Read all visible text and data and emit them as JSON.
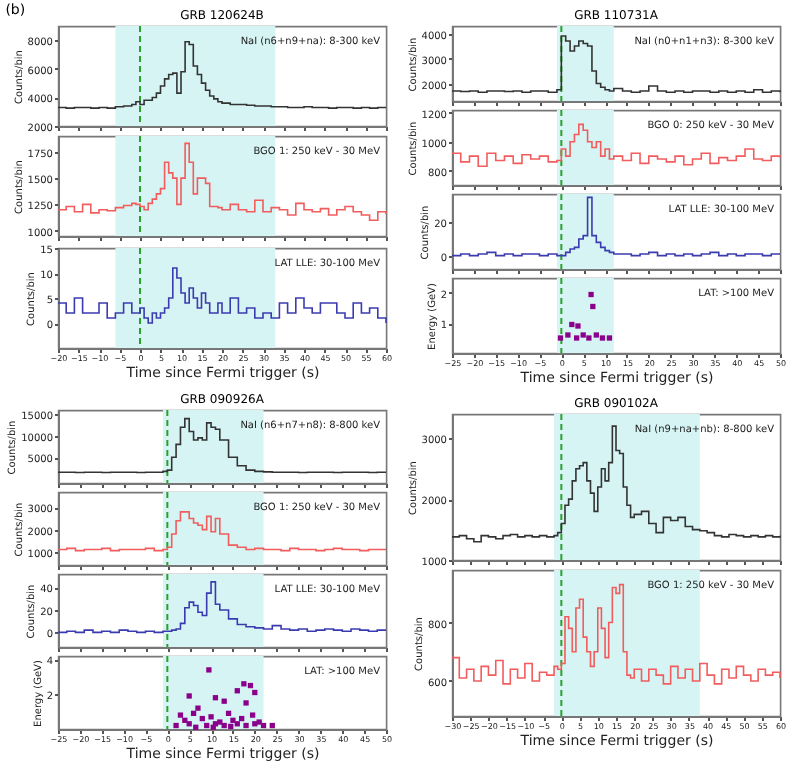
{
  "chart_data": [
    {
      "type": "step",
      "title": "GRB 120624B",
      "ylabel": "Counts/bin",
      "annotations": [
        "(b)",
        "NaI (n6+n9+na): 8-300 keV"
      ],
      "tick_labels": "y",
      "x": [
        -20,
        -18,
        -16,
        -14,
        -12,
        -10,
        -8,
        -6,
        -4,
        -2,
        -1,
        0,
        1,
        2,
        3,
        4,
        5,
        6,
        7,
        8,
        9,
        10,
        11,
        12,
        13,
        14,
        15,
        16,
        17,
        18,
        19,
        20,
        22,
        24,
        26,
        28,
        30,
        32,
        34,
        36,
        38,
        40,
        42,
        44,
        46,
        48,
        50,
        52,
        54,
        56,
        58,
        60
      ],
      "series": [
        {
          "color": "#333333",
          "values": [
            3300,
            3250,
            3300,
            3300,
            3250,
            3300,
            3250,
            3350,
            3400,
            3500,
            3700,
            3500,
            3800,
            3800,
            4000,
            4300,
            4800,
            5300,
            5600,
            5700,
            4300,
            5800,
            7900,
            7700,
            6200,
            5600,
            5000,
            4500,
            4100,
            3900,
            3700,
            3600,
            3500,
            3500,
            3450,
            3400,
            3400,
            3350,
            3350,
            3300,
            3300,
            3350,
            3300,
            3300,
            3250,
            3300,
            3300,
            3250,
            3300,
            3250,
            3300,
            3300
          ]
        }
      ],
      "xlim": [
        -20,
        60
      ],
      "xticks": [
        -20,
        -15,
        -10,
        -5,
        0,
        5,
        10,
        15,
        20,
        25,
        30,
        35,
        40,
        45,
        50,
        55,
        60
      ],
      "ylim": [
        2000,
        9000
      ],
      "yticks": [
        2000,
        4000,
        6000,
        8000
      ],
      "bands": [
        {
          "axis": "x",
          "from": -6,
          "to": 33,
          "color": "#d6f4f4"
        }
      ],
      "ref_lines": [
        {
          "axis": "x",
          "value": 0,
          "color": "#2ca02c",
          "line_style": "dashed"
        }
      ]
    },
    {
      "type": "step",
      "ylabel": "Counts/bin",
      "annotations": [
        "BGO 1: 250 keV - 30 MeV"
      ],
      "tick_labels": "y",
      "x": [
        -20,
        -18,
        -16,
        -14,
        -12,
        -10,
        -8,
        -6,
        -4,
        -2,
        -1,
        0,
        1,
        2,
        3,
        4,
        5,
        6,
        7,
        8,
        9,
        10,
        11,
        12,
        13,
        14,
        15,
        16,
        17,
        18,
        19,
        20,
        22,
        24,
        26,
        28,
        30,
        32,
        34,
        36,
        38,
        40,
        42,
        44,
        46,
        48,
        50,
        52,
        54,
        56,
        58,
        60
      ],
      "series": [
        {
          "color": "#f25c5c",
          "values": [
            1200,
            1230,
            1180,
            1250,
            1170,
            1200,
            1190,
            1220,
            1240,
            1260,
            1250,
            1230,
            1200,
            1260,
            1300,
            1350,
            1400,
            1650,
            1550,
            1500,
            1250,
            1500,
            1830,
            1650,
            1350,
            1500,
            1500,
            1450,
            1230,
            1230,
            1220,
            1200,
            1250,
            1200,
            1180,
            1290,
            1180,
            1220,
            1200,
            1150,
            1260,
            1200,
            1180,
            1210,
            1150,
            1200,
            1230,
            1180,
            1150,
            1100,
            1180,
            1160
          ]
        }
      ],
      "xlim": [
        -20,
        60
      ],
      "xticks": [
        -20,
        -15,
        -10,
        -5,
        0,
        5,
        10,
        15,
        20,
        25,
        30,
        35,
        40,
        45,
        50,
        55,
        60
      ],
      "ylim": [
        950,
        1900
      ],
      "yticks": [
        1000,
        1250,
        1500,
        1750
      ],
      "bands": [
        {
          "axis": "x",
          "from": -6,
          "to": 33,
          "color": "#d6f4f4"
        }
      ],
      "ref_lines": [
        {
          "axis": "x",
          "value": 0,
          "color": "#2ca02c",
          "line_style": "dashed"
        }
      ]
    },
    {
      "type": "step",
      "ylabel": "Counts/bin",
      "xlabel": "Time since Fermi trigger (s)",
      "annotations": [
        "LAT LLE: 30-100 MeV"
      ],
      "x": [
        -20,
        -18,
        -16,
        -14,
        -12,
        -10,
        -8,
        -6,
        -4,
        -2,
        -1,
        0,
        1,
        2,
        3,
        4,
        5,
        6,
        7,
        8,
        9,
        10,
        11,
        12,
        13,
        14,
        15,
        16,
        17,
        18,
        19,
        20,
        22,
        24,
        26,
        28,
        30,
        32,
        34,
        36,
        38,
        40,
        42,
        44,
        46,
        48,
        50,
        52,
        54,
        56,
        58,
        60
      ],
      "series": [
        {
          "color": "#3b3bb0",
          "values": [
            4,
            2,
            5,
            2,
            2,
            4,
            1,
            2,
            4,
            2,
            2,
            3,
            1,
            0,
            2,
            1,
            2,
            3,
            5,
            11,
            9,
            6,
            4,
            7,
            5,
            3,
            6,
            4,
            2,
            2,
            4,
            2,
            5,
            2,
            3,
            1,
            2,
            1,
            4,
            2,
            5,
            3,
            2,
            4,
            4,
            2,
            1,
            4,
            2,
            3,
            1,
            0
          ]
        }
      ],
      "xlim": [
        -20,
        60
      ],
      "xticks": [
        -20,
        -15,
        -10,
        -5,
        0,
        5,
        10,
        15,
        20,
        25,
        30,
        35,
        40,
        45,
        50,
        55,
        60
      ],
      "ylim": [
        -5,
        15
      ],
      "yticks": [
        0,
        5,
        10,
        15
      ],
      "bands": [
        {
          "axis": "x",
          "from": -6,
          "to": 33,
          "color": "#d6f4f4"
        }
      ],
      "ref_lines": [
        {
          "axis": "x",
          "value": 0,
          "color": "#2ca02c",
          "line_style": "dashed"
        }
      ]
    },
    {
      "type": "step",
      "title": "GRB 110731A",
      "ylabel": "Counts/bin",
      "annotations": [
        "NaI (n0+n1+n3): 8-300 keV"
      ],
      "tick_labels": "y",
      "x": [
        -25,
        -23,
        -21,
        -19,
        -17,
        -15,
        -13,
        -11,
        -9,
        -7,
        -5,
        -3,
        -1,
        0,
        1,
        2,
        3,
        4,
        5,
        6,
        7,
        8,
        9,
        10,
        11,
        12,
        14,
        16,
        18,
        20,
        22,
        24,
        26,
        28,
        30,
        32,
        34,
        36,
        38,
        40,
        42,
        44,
        46,
        48,
        50
      ],
      "series": [
        {
          "color": "#333333",
          "values": [
            1700,
            1680,
            1700,
            1650,
            1700,
            1700,
            1680,
            1700,
            1650,
            1700,
            1700,
            1650,
            1750,
            3900,
            3700,
            3300,
            3500,
            3700,
            3600,
            3500,
            2500,
            2000,
            1850,
            1750,
            1700,
            1800,
            1700,
            1650,
            1700,
            1900,
            1700,
            1650,
            1700,
            1650,
            1700,
            1700,
            1650,
            1700,
            1650,
            1700,
            1650,
            1750,
            1650,
            1700,
            1650
          ]
        }
      ],
      "xlim": [
        -25,
        50
      ],
      "xticks": [
        -25,
        -20,
        -15,
        -10,
        -5,
        0,
        5,
        10,
        15,
        20,
        25,
        30,
        35,
        40,
        45,
        50
      ],
      "ylim": [
        1300,
        4300
      ],
      "yticks": [
        2000,
        3000,
        4000
      ],
      "bands": [
        {
          "axis": "x",
          "from": -1,
          "to": 12,
          "color": "#d6f4f4"
        }
      ],
      "ref_lines": [
        {
          "axis": "x",
          "value": 0,
          "color": "#2ca02c",
          "line_style": "dashed"
        }
      ]
    },
    {
      "type": "step",
      "ylabel": "Counts/bin",
      "annotations": [
        "BGO 0: 250 keV - 30 MeV"
      ],
      "tick_labels": "y",
      "x": [
        -25,
        -23,
        -21,
        -19,
        -17,
        -15,
        -13,
        -11,
        -9,
        -7,
        -5,
        -3,
        -1,
        0,
        1,
        2,
        3,
        4,
        5,
        6,
        7,
        8,
        9,
        10,
        11,
        12,
        14,
        16,
        18,
        20,
        22,
        24,
        26,
        28,
        30,
        32,
        34,
        36,
        38,
        40,
        42,
        44,
        46,
        48,
        50
      ],
      "series": [
        {
          "color": "#f25c5c",
          "values": [
            920,
            860,
            900,
            830,
            920,
            870,
            900,
            850,
            910,
            880,
            900,
            860,
            870,
            950,
            900,
            1000,
            1050,
            1120,
            1080,
            1000,
            960,
            1000,
            900,
            950,
            880,
            900,
            870,
            920,
            850,
            900,
            880,
            860,
            900,
            840,
            880,
            920,
            850,
            890,
            870,
            900,
            950,
            880,
            870,
            900,
            890
          ]
        }
      ],
      "xlim": [
        -25,
        50
      ],
      "xticks": [
        -25,
        -20,
        -15,
        -10,
        -5,
        0,
        5,
        10,
        15,
        20,
        25,
        30,
        35,
        40,
        45,
        50
      ],
      "ylim": [
        700,
        1220
      ],
      "yticks": [
        800,
        1000,
        1200
      ],
      "bands": [
        {
          "axis": "x",
          "from": -1,
          "to": 12,
          "color": "#d6f4f4"
        }
      ],
      "ref_lines": [
        {
          "axis": "x",
          "value": 0,
          "color": "#2ca02c",
          "line_style": "dashed"
        }
      ]
    },
    {
      "type": "step",
      "ylabel": "Counts/bin",
      "annotations": [
        "LAT LLE: 30-100 MeV"
      ],
      "tick_labels": "y",
      "x": [
        -25,
        -23,
        -21,
        -19,
        -17,
        -15,
        -13,
        -11,
        -9,
        -7,
        -5,
        -3,
        -1,
        0,
        1,
        2,
        3,
        4,
        5,
        6,
        7,
        8,
        9,
        10,
        11,
        12,
        14,
        16,
        18,
        20,
        22,
        24,
        26,
        28,
        30,
        32,
        34,
        36,
        38,
        40,
        42,
        44,
        46,
        48,
        50
      ],
      "series": [
        {
          "color": "#3b3bb0",
          "values": [
            0,
            1,
            0,
            1,
            2,
            0,
            1,
            0,
            1,
            1,
            0,
            1,
            0,
            0,
            2,
            4,
            5,
            10,
            12,
            35,
            12,
            8,
            5,
            3,
            2,
            1,
            1,
            0,
            1,
            2,
            0,
            1,
            0,
            1,
            0,
            1,
            2,
            0,
            1,
            0,
            1,
            1,
            0,
            1,
            1
          ]
        }
      ],
      "xlim": [
        -25,
        50
      ],
      "xticks": [
        -25,
        -20,
        -15,
        -10,
        -5,
        0,
        5,
        10,
        15,
        20,
        25,
        30,
        35,
        40,
        45,
        50
      ],
      "ylim": [
        -8,
        37
      ],
      "yticks": [
        0,
        20
      ],
      "bands": [
        {
          "axis": "x",
          "from": -1,
          "to": 12,
          "color": "#d6f4f4"
        }
      ],
      "ref_lines": [
        {
          "axis": "x",
          "value": 0,
          "color": "#2ca02c",
          "line_style": "dashed"
        }
      ]
    },
    {
      "type": "scatter",
      "marker": "square",
      "ylabel": "Energy (GeV)",
      "xlabel": "Time since Fermi trigger (s)",
      "annotations": [
        "LAT: >100 MeV"
      ],
      "x": [
        -0.2,
        1.5,
        2.4,
        3.5,
        3.8,
        5,
        6.3,
        6.8,
        7.2,
        8,
        9.4,
        11
      ],
      "series": [
        {
          "color": "#8b008b",
          "values": [
            0.5,
            0.6,
            0.95,
            0.5,
            0.9,
            0.6,
            0.5,
            1.95,
            1.55,
            0.6,
            0.5,
            0.5
          ]
        }
      ],
      "xlim": [
        -25,
        50
      ],
      "xticks": [
        -25,
        -20,
        -15,
        -10,
        -5,
        0,
        5,
        10,
        15,
        20,
        25,
        30,
        35,
        40,
        45,
        50
      ],
      "ylim": [
        0,
        2.5
      ],
      "yticks": [
        1,
        2
      ],
      "bands": [
        {
          "axis": "x",
          "from": -1,
          "to": 12,
          "color": "#d6f4f4"
        }
      ],
      "ref_lines": [
        {
          "axis": "x",
          "value": 0,
          "color": "#2ca02c",
          "line_style": "dashed"
        }
      ]
    },
    {
      "type": "step",
      "title": "GRB 090926A",
      "ylabel": "Counts/bin",
      "annotations": [
        "NaI (n6+n7+n8): 8-800 keV"
      ],
      "tick_labels": "y",
      "x": [
        -25,
        -23,
        -21,
        -19,
        -17,
        -15,
        -13,
        -11,
        -9,
        -7,
        -5,
        -3,
        -1,
        0,
        1,
        2,
        3,
        4,
        5,
        6,
        7,
        8,
        9,
        10,
        11,
        12,
        14,
        16,
        18,
        20,
        22,
        24,
        26,
        28,
        30,
        32,
        34,
        36,
        38,
        40,
        42,
        44,
        46,
        48,
        50
      ],
      "series": [
        {
          "color": "#333333",
          "values": [
            1500,
            1500,
            1450,
            1500,
            1500,
            1450,
            1500,
            1500,
            1500,
            1450,
            1500,
            1500,
            1700,
            2000,
            5000,
            8000,
            12000,
            14000,
            11000,
            9000,
            9500,
            9000,
            13000,
            12000,
            11500,
            9000,
            5000,
            3000,
            2000,
            1700,
            1600,
            1500,
            1500,
            1500,
            1450,
            1500,
            1500,
            1500,
            1450,
            1500,
            1500,
            1500,
            1450,
            1500,
            1500
          ]
        }
      ],
      "xlim": [
        -25,
        50
      ],
      "xticks": [
        -25,
        -20,
        -15,
        -10,
        -5,
        0,
        5,
        10,
        15,
        20,
        25,
        30,
        35,
        40,
        45,
        50
      ],
      "ylim": [
        -1000,
        16000
      ],
      "yticks": [
        5000,
        10000,
        15000
      ],
      "bands": [
        {
          "axis": "x",
          "from": -1,
          "to": 22,
          "color": "#d6f4f4"
        }
      ],
      "ref_lines": [
        {
          "axis": "x",
          "value": 0,
          "color": "#2ca02c",
          "line_style": "dashed"
        }
      ]
    },
    {
      "type": "step",
      "ylabel": "Counts/bin",
      "annotations": [
        "BGO 1: 250 keV - 30 MeV"
      ],
      "tick_labels": "y",
      "x": [
        -25,
        -23,
        -21,
        -19,
        -17,
        -15,
        -13,
        -11,
        -9,
        -7,
        -5,
        -3,
        -1,
        0,
        1,
        2,
        3,
        4,
        5,
        6,
        7,
        8,
        9,
        10,
        11,
        12,
        14,
        16,
        18,
        20,
        22,
        24,
        26,
        28,
        30,
        32,
        34,
        36,
        38,
        40,
        42,
        44,
        46,
        48,
        50
      ],
      "series": [
        {
          "color": "#f25c5c",
          "values": [
            1100,
            1150,
            1050,
            1100,
            1100,
            1150,
            1050,
            1100,
            1100,
            1100,
            1150,
            1050,
            1100,
            1200,
            1800,
            2400,
            2800,
            2800,
            2500,
            2300,
            2200,
            2000,
            2600,
            1900,
            2500,
            1800,
            1300,
            1200,
            1100,
            1150,
            1100,
            1100,
            1050,
            1150,
            1100,
            1100,
            1050,
            1100,
            1150,
            1100,
            1100,
            1050,
            1100,
            1100,
            1100
          ]
        }
      ],
      "xlim": [
        -25,
        50
      ],
      "xticks": [
        -25,
        -20,
        -15,
        -10,
        -5,
        0,
        5,
        10,
        15,
        20,
        25,
        30,
        35,
        40,
        45,
        50
      ],
      "ylim": [
        400,
        3700
      ],
      "yticks": [
        1000,
        2000,
        3000
      ],
      "bands": [
        {
          "axis": "x",
          "from": -1,
          "to": 22,
          "color": "#d6f4f4"
        }
      ],
      "ref_lines": [
        {
          "axis": "x",
          "value": 0,
          "color": "#2ca02c",
          "line_style": "dashed"
        }
      ]
    },
    {
      "type": "step",
      "ylabel": "Counts/bin",
      "annotations": [
        "LAT LLE: 30-100 MeV"
      ],
      "tick_labels": "y",
      "x": [
        -25,
        -23,
        -21,
        -19,
        -17,
        -15,
        -13,
        -11,
        -9,
        -7,
        -5,
        -3,
        -1,
        0,
        1,
        2,
        3,
        4,
        5,
        6,
        7,
        8,
        9,
        10,
        11,
        12,
        14,
        16,
        18,
        20,
        22,
        24,
        26,
        28,
        30,
        32,
        34,
        36,
        38,
        40,
        42,
        44,
        46,
        48,
        50
      ],
      "series": [
        {
          "color": "#3b3bb0",
          "values": [
            0,
            1,
            0,
            2,
            0,
            1,
            0,
            2,
            1,
            0,
            1,
            0,
            1,
            1,
            2,
            3,
            8,
            22,
            27,
            24,
            18,
            15,
            35,
            45,
            25,
            20,
            12,
            7,
            5,
            4,
            3,
            6,
            3,
            2,
            3,
            1,
            2,
            3,
            2,
            1,
            3,
            2,
            1,
            2,
            2
          ]
        }
      ],
      "xlim": [
        -25,
        50
      ],
      "xticks": [
        -25,
        -20,
        -15,
        -10,
        -5,
        0,
        5,
        10,
        15,
        20,
        25,
        30,
        35,
        40,
        45,
        50
      ],
      "ylim": [
        -13,
        52
      ],
      "yticks": [
        0,
        20,
        40
      ],
      "bands": [
        {
          "axis": "x",
          "from": -1,
          "to": 22,
          "color": "#d6f4f4"
        }
      ],
      "ref_lines": [
        {
          "axis": "x",
          "value": 0,
          "color": "#2ca02c",
          "line_style": "dashed"
        }
      ]
    },
    {
      "type": "scatter",
      "marker": "square",
      "ylabel": "Energy (GeV)",
      "xlabel": "Time since Fermi trigger (s)",
      "annotations": [
        "LAT: >100 MeV"
      ],
      "x": [
        9.5,
        17.5,
        19,
        20,
        16,
        5,
        11,
        13,
        18,
        7,
        3,
        4,
        6,
        8,
        10,
        12,
        14,
        15,
        17,
        19.5,
        21,
        2,
        5,
        9,
        11,
        13,
        16,
        18,
        20,
        22,
        24,
        6.5,
        10.5,
        14.5
      ],
      "series": [
        {
          "color": "#8b008b",
          "values": [
            3.4,
            2.6,
            2.5,
            2.1,
            2.2,
            1.9,
            1.8,
            1.6,
            1.5,
            1.2,
            0.8,
            0.5,
            0.9,
            0.6,
            0.7,
            0.4,
            0.9,
            0.5,
            0.6,
            0.8,
            0.4,
            0.2,
            0.3,
            0.2,
            0.3,
            0.2,
            0.3,
            0.2,
            0.3,
            0.2,
            0.2,
            0.1,
            0.1,
            0.15
          ]
        }
      ],
      "xlim": [
        -25,
        50
      ],
      "xticks": [
        -25,
        -20,
        -15,
        -10,
        -5,
        0,
        5,
        10,
        15,
        20,
        25,
        30,
        35,
        40,
        45,
        50
      ],
      "ylim": [
        0,
        4.2
      ],
      "yticks": [
        2,
        4
      ],
      "bands": [
        {
          "axis": "x",
          "from": -1,
          "to": 22,
          "color": "#d6f4f4"
        }
      ],
      "ref_lines": [
        {
          "axis": "x",
          "value": 0,
          "color": "#2ca02c",
          "line_style": "dashed"
        }
      ]
    },
    {
      "type": "step",
      "title": "GRB 090102A",
      "ylabel": "Counts/bin",
      "annotations": [
        "NaI (n9+na+nb): 8-800 keV"
      ],
      "tick_labels": "y",
      "x": [
        -30,
        -28,
        -26,
        -24,
        -22,
        -20,
        -18,
        -16,
        -14,
        -12,
        -10,
        -8,
        -6,
        -4,
        -2,
        -1,
        0,
        1,
        2,
        3,
        4,
        5,
        6,
        7,
        8,
        9,
        10,
        11,
        12,
        13,
        14,
        15,
        16,
        17,
        18,
        19,
        20,
        22,
        24,
        26,
        28,
        30,
        32,
        34,
        36,
        38,
        40,
        42,
        44,
        46,
        48,
        50,
        52,
        54,
        56,
        58,
        60
      ],
      "series": [
        {
          "color": "#333333",
          "values": [
            1380,
            1400,
            1350,
            1300,
            1400,
            1380,
            1350,
            1400,
            1420,
            1380,
            1400,
            1380,
            1400,
            1380,
            1400,
            1450,
            1600,
            1900,
            2000,
            2300,
            2500,
            2550,
            2600,
            2300,
            2100,
            1800,
            2200,
            2500,
            2300,
            2600,
            3200,
            2800,
            2750,
            2200,
            1900,
            1700,
            1750,
            1800,
            1600,
            1450,
            1700,
            1650,
            1700,
            1550,
            1500,
            1480,
            1450,
            1400,
            1380,
            1420,
            1400,
            1380,
            1400,
            1380,
            1400,
            1380,
            1400
          ]
        }
      ],
      "xlim": [
        -30,
        60
      ],
      "xticks": [
        -30,
        -25,
        -20,
        -15,
        -10,
        -5,
        0,
        5,
        10,
        15,
        20,
        25,
        30,
        35,
        40,
        45,
        50,
        55,
        60
      ],
      "ylim": [
        1000,
        3400
      ],
      "yticks": [
        1000,
        2000,
        3000
      ],
      "bands": [
        {
          "axis": "x",
          "from": -2,
          "to": 38,
          "color": "#d6f4f4"
        }
      ],
      "ref_lines": [
        {
          "axis": "x",
          "value": 0,
          "color": "#2ca02c",
          "line_style": "dashed"
        }
      ]
    },
    {
      "type": "step",
      "ylabel": "Counts/bin",
      "xlabel": "Time since Fermi trigger (s)",
      "annotations": [
        "BGO 1: 250 keV - 30 MeV"
      ],
      "x": [
        -30,
        -28,
        -26,
        -24,
        -22,
        -20,
        -18,
        -16,
        -14,
        -12,
        -10,
        -8,
        -6,
        -4,
        -2,
        -1,
        0,
        1,
        2,
        3,
        4,
        5,
        6,
        7,
        8,
        9,
        10,
        11,
        12,
        13,
        14,
        15,
        16,
        17,
        18,
        19,
        20,
        22,
        24,
        26,
        28,
        30,
        32,
        34,
        36,
        38,
        40,
        42,
        44,
        46,
        48,
        50,
        52,
        54,
        56,
        58,
        60
      ],
      "series": [
        {
          "color": "#f25c5c",
          "values": [
            680,
            610,
            640,
            600,
            650,
            620,
            670,
            590,
            640,
            610,
            660,
            600,
            630,
            620,
            650,
            640,
            660,
            820,
            780,
            700,
            850,
            880,
            750,
            700,
            650,
            700,
            850,
            780,
            680,
            800,
            920,
            900,
            930,
            700,
            620,
            610,
            640,
            600,
            640,
            620,
            590,
            650,
            610,
            640,
            600,
            660,
            620,
            590,
            640,
            610,
            650,
            620,
            600,
            640,
            620,
            630,
            610
          ]
        }
      ],
      "xlim": [
        -30,
        60
      ],
      "xticks": [
        -30,
        -25,
        -20,
        -15,
        -10,
        -5,
        0,
        5,
        10,
        15,
        20,
        25,
        30,
        35,
        40,
        45,
        50,
        55,
        60
      ],
      "ylim": [
        480,
        980
      ],
      "yticks": [
        600,
        800
      ],
      "bands": [
        {
          "axis": "x",
          "from": -2,
          "to": 38,
          "color": "#d6f4f4"
        }
      ],
      "ref_lines": [
        {
          "axis": "x",
          "value": 0,
          "color": "#2ca02c",
          "line_style": "dashed"
        }
      ]
    }
  ]
}
